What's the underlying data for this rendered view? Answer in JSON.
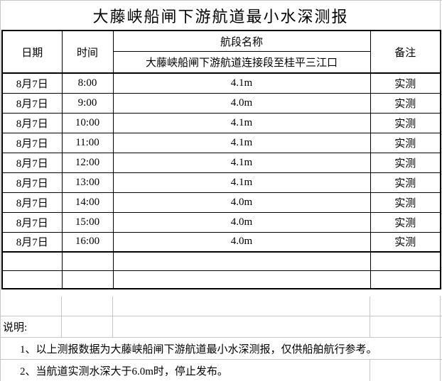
{
  "title": "大藤峡船闸下游航道最小水深测报",
  "table": {
    "headers": {
      "date": "日期",
      "time": "时间",
      "section_group": "航段名称",
      "section_name": "大藤峡船闸下游航道连接段至桂平三江口",
      "remark": "备注"
    },
    "rows": [
      {
        "date": "8月7日",
        "time": "8:00",
        "depth": "4.1m",
        "remark": "实测"
      },
      {
        "date": "8月7日",
        "time": "9:00",
        "depth": "4.0m",
        "remark": "实测"
      },
      {
        "date": "8月7日",
        "time": "10:00",
        "depth": "4.1m",
        "remark": "实测"
      },
      {
        "date": "8月7日",
        "time": "11:00",
        "depth": "4.1m",
        "remark": "实测"
      },
      {
        "date": "8月7日",
        "time": "12:00",
        "depth": "4.1m",
        "remark": "实测"
      },
      {
        "date": "8月7日",
        "time": "13:00",
        "depth": "4.1m",
        "remark": "实测"
      },
      {
        "date": "8月7日",
        "time": "14:00",
        "depth": "4.0m",
        "remark": "实测"
      },
      {
        "date": "8月7日",
        "time": "15:00",
        "depth": "4.0m",
        "remark": "实测"
      },
      {
        "date": "8月7日",
        "time": "16:00",
        "depth": "4.0m",
        "remark": "实测"
      }
    ],
    "empty_rows": 2
  },
  "footer": {
    "label": "说明:",
    "notes": [
      "1、以上测报数据为大藤峡船闸下游航道最小水深测报，仅供船舶航行参考。",
      "2、当航道实测水深大于6.0m时，停止发布。"
    ]
  },
  "colors": {
    "border": "#000000",
    "gridline": "#c6c6c6",
    "background": "#ffffff",
    "text": "#000000"
  }
}
